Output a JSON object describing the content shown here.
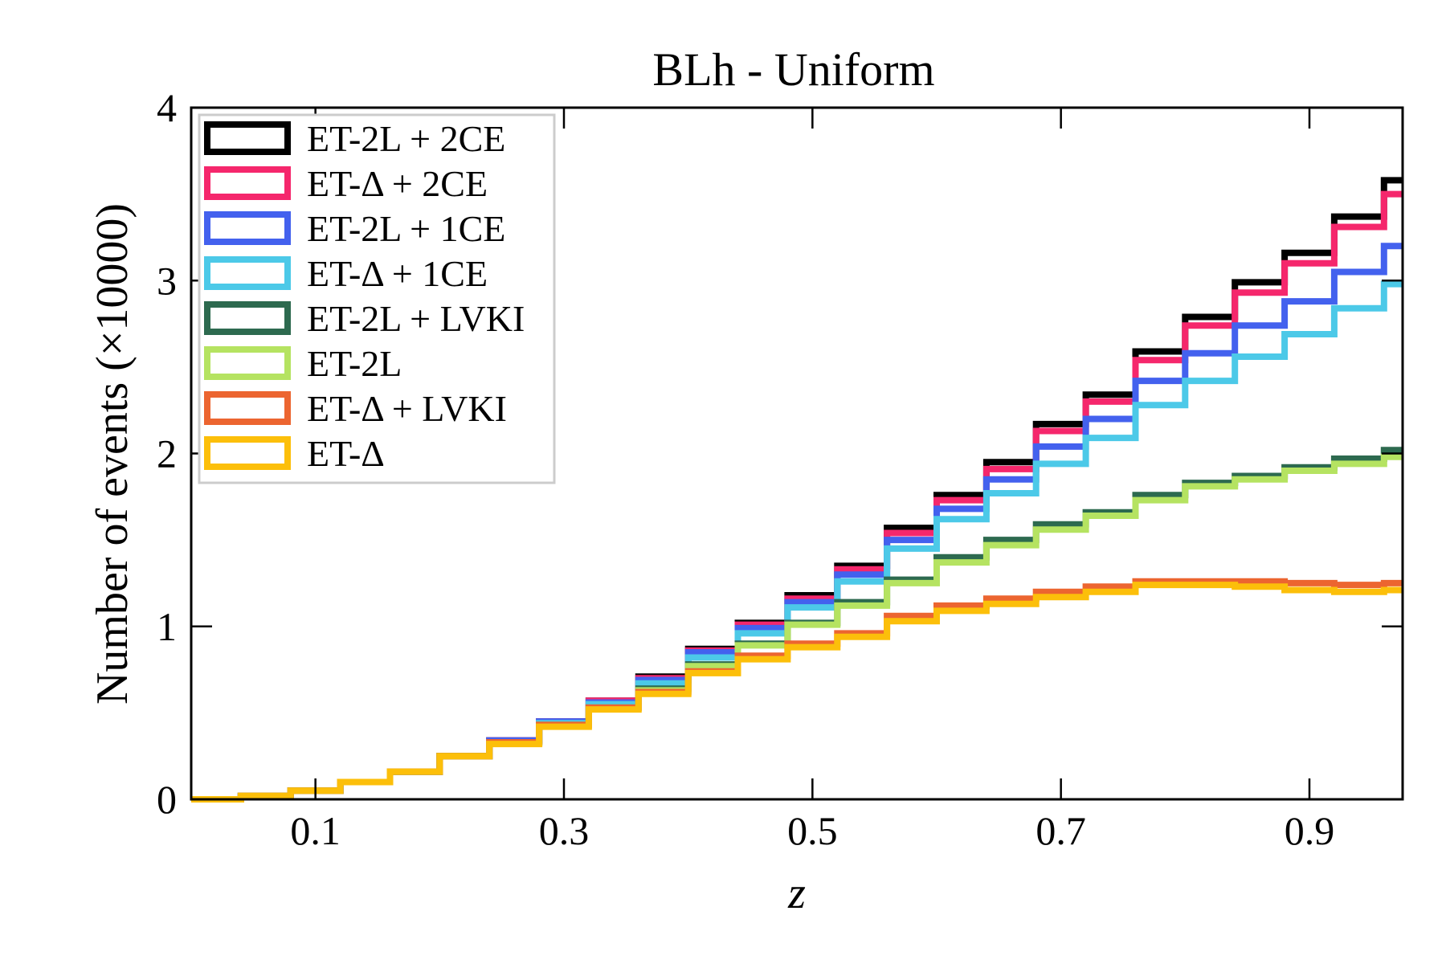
{
  "chart_data": {
    "type": "step",
    "title": "BLh - Uniform",
    "xlabel": "z",
    "ylabel": "Number of events (×10000)",
    "xlim": [
      0.0,
      0.975
    ],
    "ylim": [
      0,
      4
    ],
    "xticks": [
      0.1,
      0.3,
      0.5,
      0.7,
      0.9
    ],
    "xtick_labels": [
      "0.1",
      "0.3",
      "0.5",
      "0.7",
      "0.9"
    ],
    "yticks": [
      0,
      1,
      2,
      3,
      4
    ],
    "ytick_labels": [
      "0",
      "1",
      "2",
      "3",
      "4"
    ],
    "legend_position": "top-left",
    "bin_width": 0.04,
    "bin_edges": [
      0.0,
      0.04,
      0.08,
      0.12,
      0.16,
      0.2,
      0.24,
      0.28,
      0.32,
      0.36,
      0.4,
      0.44,
      0.48,
      0.52,
      0.56,
      0.6,
      0.64,
      0.68,
      0.72,
      0.76,
      0.8,
      0.84,
      0.88,
      0.92,
      0.96
    ],
    "series": [
      {
        "name": "ET-2L + 2CE",
        "color": "#000000",
        "values": [
          0.0,
          0.02,
          0.05,
          0.1,
          0.16,
          0.25,
          0.34,
          0.45,
          0.57,
          0.71,
          0.87,
          1.02,
          1.18,
          1.35,
          1.57,
          1.76,
          1.95,
          2.17,
          2.34,
          2.59,
          2.79,
          2.99,
          3.16,
          3.37,
          3.58
        ]
      },
      {
        "name": "ET-Δ + 2CE",
        "color": "#f5276c",
        "values": [
          0.0,
          0.02,
          0.05,
          0.1,
          0.16,
          0.25,
          0.34,
          0.45,
          0.57,
          0.7,
          0.86,
          1.01,
          1.16,
          1.33,
          1.54,
          1.73,
          1.91,
          2.13,
          2.3,
          2.54,
          2.74,
          2.93,
          3.1,
          3.31,
          3.5
        ]
      },
      {
        "name": "ET-2L + 1CE",
        "color": "#4361ee",
        "values": [
          0.0,
          0.02,
          0.05,
          0.1,
          0.16,
          0.25,
          0.34,
          0.45,
          0.56,
          0.69,
          0.85,
          0.99,
          1.14,
          1.3,
          1.5,
          1.68,
          1.85,
          2.04,
          2.2,
          2.42,
          2.58,
          2.74,
          2.88,
          3.05,
          3.2
        ]
      },
      {
        "name": "ET-Δ + 1CE",
        "color": "#4cc9e8",
        "values": [
          0.0,
          0.02,
          0.05,
          0.1,
          0.16,
          0.25,
          0.33,
          0.44,
          0.55,
          0.67,
          0.82,
          0.96,
          1.11,
          1.26,
          1.45,
          1.62,
          1.77,
          1.94,
          2.09,
          2.28,
          2.42,
          2.56,
          2.69,
          2.84,
          2.98
        ]
      },
      {
        "name": "ET-2L + LVKI",
        "color": "#2d6a4f",
        "values": [
          0.0,
          0.02,
          0.05,
          0.1,
          0.16,
          0.25,
          0.33,
          0.43,
          0.53,
          0.64,
          0.78,
          0.9,
          1.02,
          1.14,
          1.27,
          1.4,
          1.5,
          1.59,
          1.66,
          1.76,
          1.83,
          1.87,
          1.92,
          1.97,
          2.02
        ]
      },
      {
        "name": "ET-2L",
        "color": "#b5e361",
        "values": [
          0.0,
          0.02,
          0.05,
          0.1,
          0.16,
          0.25,
          0.33,
          0.43,
          0.53,
          0.63,
          0.77,
          0.89,
          1.01,
          1.12,
          1.25,
          1.37,
          1.47,
          1.56,
          1.64,
          1.73,
          1.81,
          1.85,
          1.9,
          1.94,
          1.98
        ]
      },
      {
        "name": "ET-Δ + LVKI",
        "color": "#ec6530",
        "values": [
          0.0,
          0.02,
          0.05,
          0.1,
          0.16,
          0.25,
          0.33,
          0.43,
          0.53,
          0.62,
          0.74,
          0.83,
          0.9,
          0.96,
          1.06,
          1.12,
          1.16,
          1.2,
          1.23,
          1.26,
          1.26,
          1.26,
          1.25,
          1.24,
          1.25
        ]
      },
      {
        "name": "ET-Δ",
        "color": "#fcbf0a",
        "values": [
          0.0,
          0.02,
          0.05,
          0.1,
          0.16,
          0.25,
          0.32,
          0.42,
          0.52,
          0.61,
          0.73,
          0.81,
          0.88,
          0.94,
          1.03,
          1.09,
          1.13,
          1.17,
          1.2,
          1.24,
          1.24,
          1.23,
          1.21,
          1.2,
          1.21
        ]
      }
    ]
  }
}
